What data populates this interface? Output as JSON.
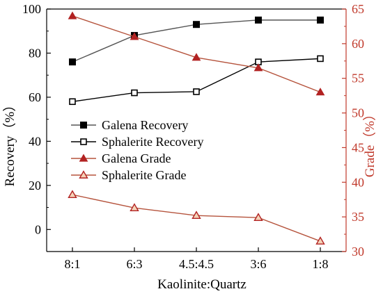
{
  "chart_data": {
    "type": "line",
    "categories": [
      "8:1",
      "6:3",
      "4.5:4.5",
      "3:6",
      "1:8"
    ],
    "xlabel": "Kaolinite:Quartz",
    "ylabel_left": "Recovery（%）",
    "ylabel_right": "Grade（%）",
    "ylim_left": [
      -10,
      100
    ],
    "ylim_right": [
      30,
      65
    ],
    "yticks_left": [
      0,
      20,
      40,
      60,
      80,
      100
    ],
    "yticks_right": [
      30,
      35,
      40,
      45,
      50,
      55,
      60,
      65
    ],
    "grid": false,
    "legend_position": "middle-left",
    "left_axis_color": "#000000",
    "right_axis_color": "#c0392b",
    "series": [
      {
        "name": "Galena Recovery",
        "axis": "left",
        "marker": "filled-square",
        "color": "#000000",
        "line_color": "#555555",
        "values": [
          76,
          88,
          93,
          95,
          95
        ]
      },
      {
        "name": "Sphalerite Recovery",
        "axis": "left",
        "marker": "open-square",
        "color": "#000000",
        "line_color": "#000000",
        "values": [
          58,
          62,
          62.5,
          76,
          77.5
        ]
      },
      {
        "name": "Galena Grade",
        "axis": "right",
        "marker": "filled-triangle",
        "color": "#b22222",
        "line_color": "#b5533c",
        "values": [
          64,
          61,
          58,
          56.5,
          53
        ]
      },
      {
        "name": "Sphalerite Grade",
        "axis": "right",
        "marker": "open-triangle",
        "color": "#b22222",
        "line_color": "#b5533c",
        "values": [
          38.2,
          36.3,
          35.2,
          34.9,
          31.5
        ]
      }
    ]
  }
}
